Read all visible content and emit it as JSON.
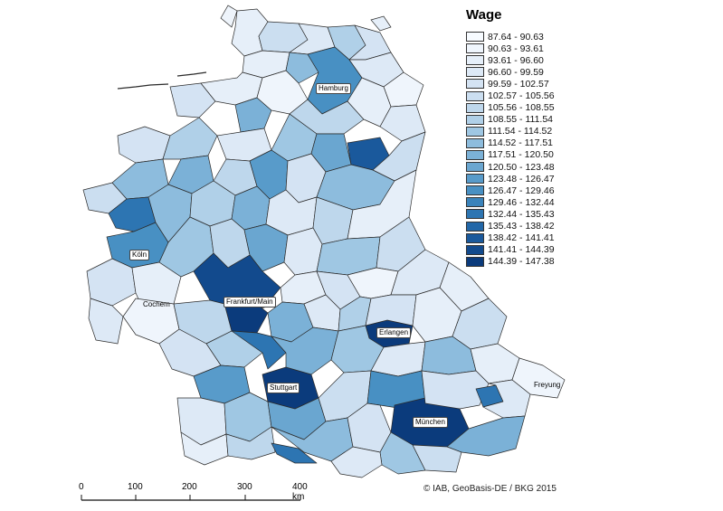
{
  "legend": {
    "title": "Wage",
    "classes": [
      {
        "label": "87.64 - 90.63",
        "color": "#f7fbff"
      },
      {
        "label": "90.63 - 93.61",
        "color": "#eff5fc"
      },
      {
        "label": "93.61 - 96.60",
        "color": "#e6eff9"
      },
      {
        "label": "96.60 - 99.59",
        "color": "#dde9f6"
      },
      {
        "label": "99.59 - 102.57",
        "color": "#d4e3f3"
      },
      {
        "label": "102.57 - 105.56",
        "color": "#cbdef0"
      },
      {
        "label": "105.56 - 108.55",
        "color": "#bed7ec"
      },
      {
        "label": "108.55 - 111.54",
        "color": "#b0d0e8"
      },
      {
        "label": "111.54 - 114.52",
        "color": "#9fc7e3"
      },
      {
        "label": "114.52 - 117.51",
        "color": "#8dbcdd"
      },
      {
        "label": "117.51 - 120.50",
        "color": "#7bb1d7"
      },
      {
        "label": "120.50 - 123.48",
        "color": "#6aa6d0"
      },
      {
        "label": "123.48 - 126.47",
        "color": "#589bca"
      },
      {
        "label": "126.47 - 129.46",
        "color": "#4890c3"
      },
      {
        "label": "129.46 - 132.44",
        "color": "#3a83bb"
      },
      {
        "label": "132.44 - 135.43",
        "color": "#2d75b2"
      },
      {
        "label": "135.43 - 138.42",
        "color": "#2267a8"
      },
      {
        "label": "138.42 - 141.41",
        "color": "#1a599c"
      },
      {
        "label": "141.41 - 144.39",
        "color": "#124a8d"
      },
      {
        "label": "144.39 - 147.38",
        "color": "#0b3b7c"
      }
    ]
  },
  "cities": {
    "hamburg": "Hamburg",
    "koln": "Köln",
    "cochem": "Cochem",
    "frankfurt": "Frankfurt/Main",
    "erlangen": "Erlangen",
    "stuttgart": "Stuttgart",
    "munchen": "München",
    "freyung": "Freyung"
  },
  "scale": {
    "ticks": [
      "0",
      "100",
      "200",
      "300",
      "400 km"
    ]
  },
  "attribution": "© IAB, GeoBasis-DE / BKG 2015"
}
